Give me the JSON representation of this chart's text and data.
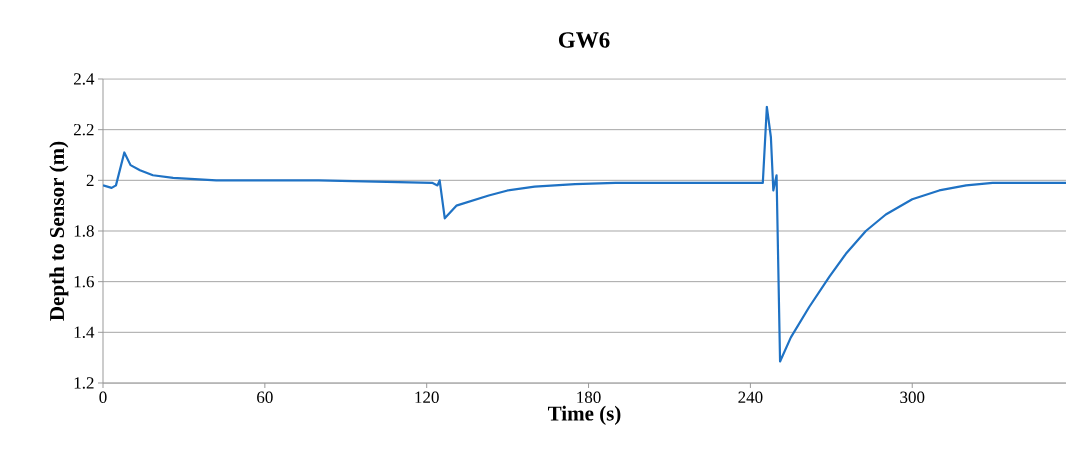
{
  "chart_data": {
    "type": "line",
    "title": "GW6",
    "xlabel": "Time (s)",
    "ylabel": "Depth to Sensor (m)",
    "x": [
      0,
      3.2,
      4.8,
      7.9,
      10.2,
      13.7,
      18.5,
      26,
      42,
      80,
      122,
      124,
      124.8,
      126.7,
      131,
      143,
      150,
      160,
      175,
      190,
      220,
      244.6,
      246.1,
      247.6,
      248.5,
      249.7,
      251,
      255,
      261.8,
      269.3,
      275.4,
      282.8,
      290.2,
      300,
      310,
      320,
      329.8,
      357
    ],
    "series": [
      {
        "color": "#1f72c4",
        "values": [
          1.98,
          1.97,
          1.98,
          2.11,
          2.06,
          2.04,
          2.02,
          2.01,
          2.0,
          2.0,
          1.99,
          1.98,
          2.0,
          1.85,
          1.9,
          1.94,
          1.96,
          1.975,
          1.985,
          1.99,
          1.99,
          1.99,
          2.29,
          2.17,
          1.96,
          2.02,
          1.285,
          1.38,
          1.5,
          1.62,
          1.71,
          1.8,
          1.865,
          1.925,
          1.96,
          1.98,
          1.99,
          1.99
        ]
      }
    ],
    "xlim": [
      0,
      357
    ],
    "xticks": [
      0,
      60,
      120,
      180,
      240,
      300
    ],
    "ylim": [
      1.2,
      2.4
    ],
    "yticks": [
      1.2,
      1.4,
      1.6,
      1.8,
      2,
      2.2,
      2.4
    ],
    "grid": "y",
    "marker": "none",
    "line_style": "solid"
  }
}
